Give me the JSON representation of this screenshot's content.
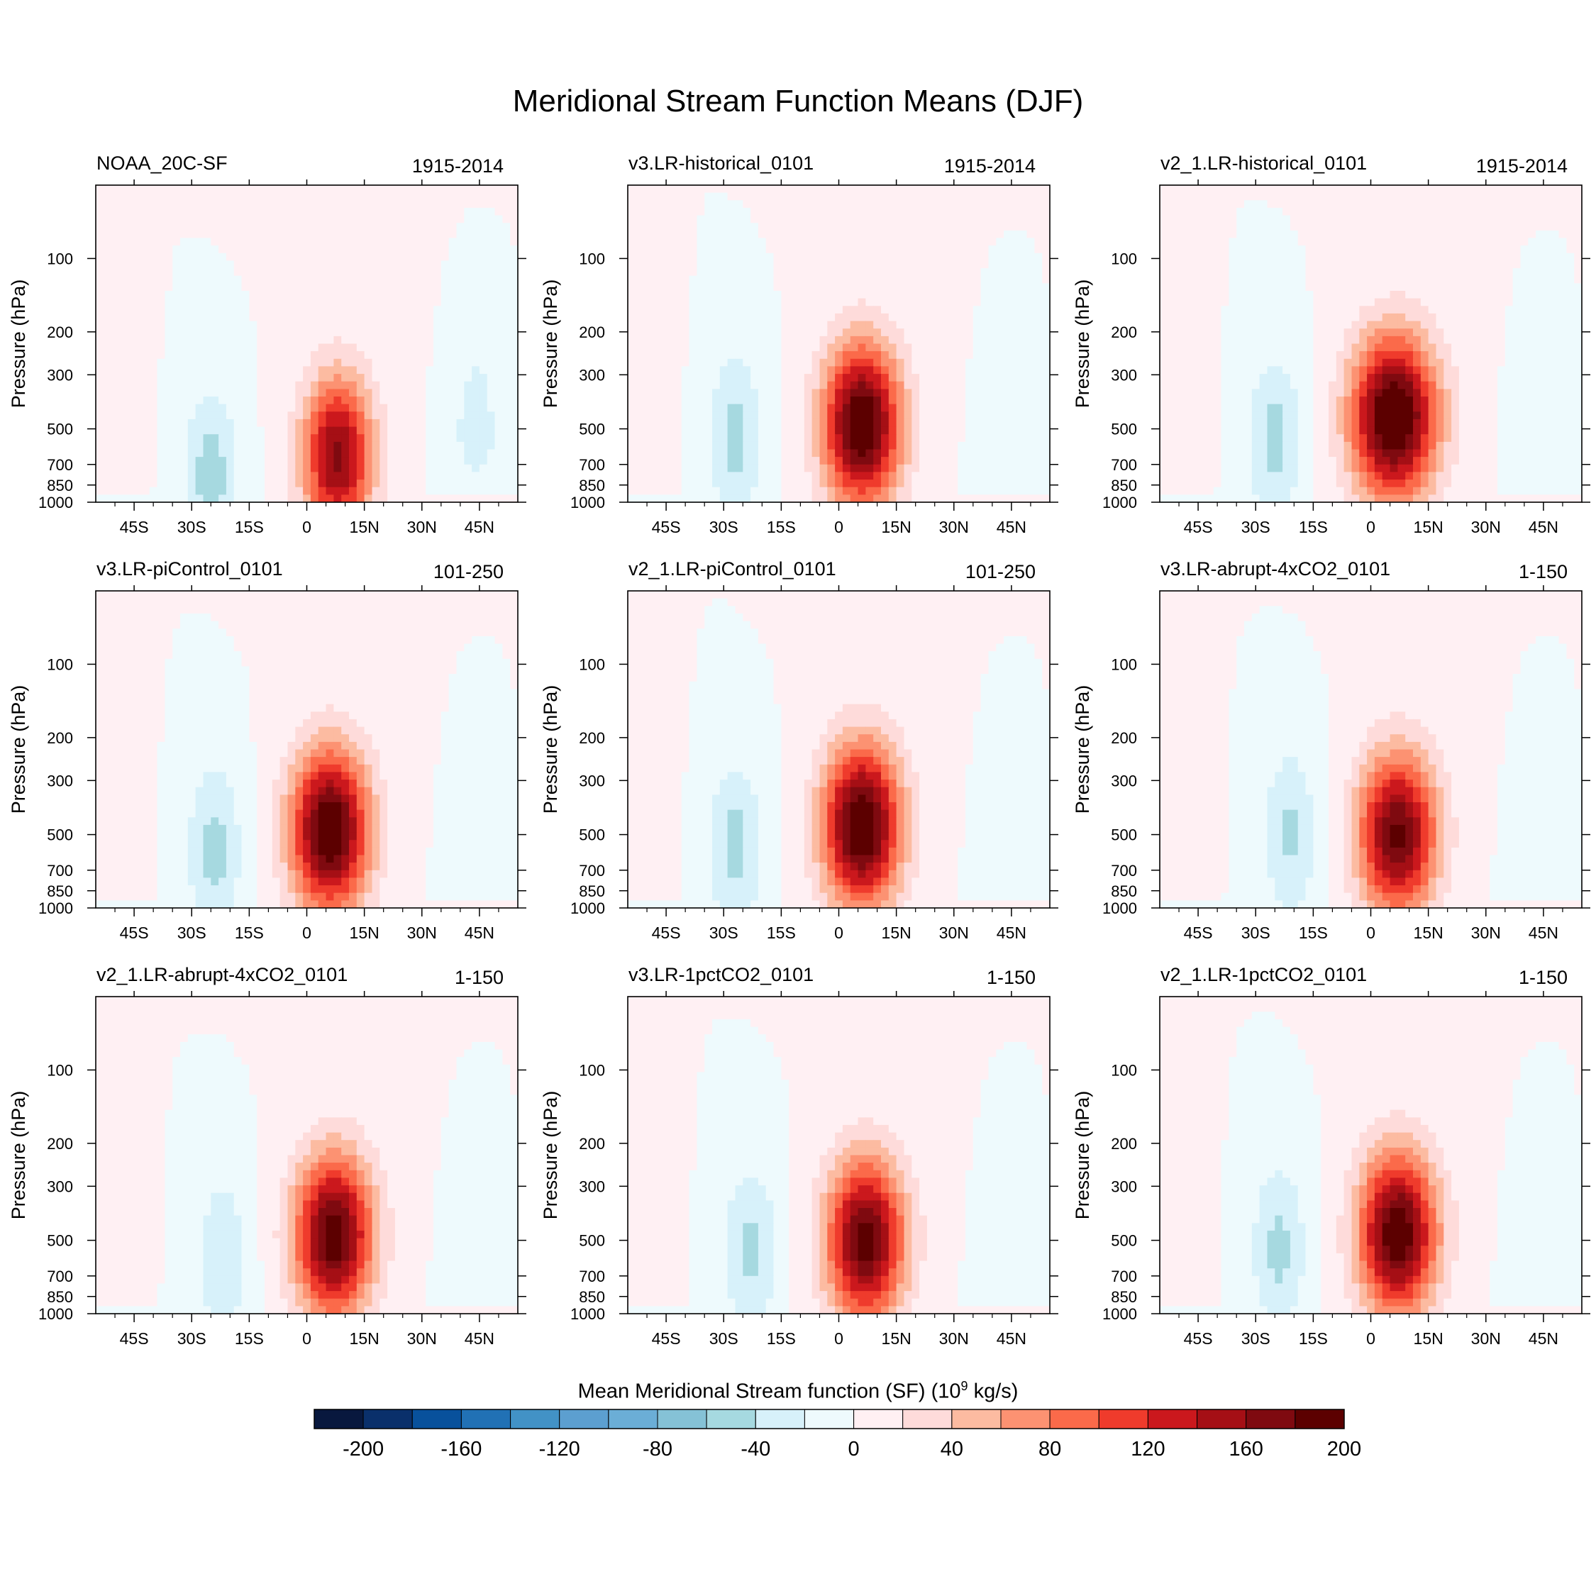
{
  "title": "Meridional Stream Function Means (DJF)",
  "colorbar": {
    "title_prefix": "Mean Meridional Stream function (SF) (10",
    "title_exp": "9",
    "title_suffix": " kg/s)",
    "levels": [
      -220,
      -200,
      -180,
      -160,
      -140,
      -120,
      -100,
      -80,
      -60,
      -40,
      -20,
      0,
      20,
      40,
      60,
      80,
      100,
      120,
      140,
      160,
      180,
      200,
      220
    ],
    "colors": [
      "#08183e",
      "#0a306b",
      "#08519c",
      "#2171b5",
      "#4292c6",
      "#5c9fd0",
      "#6baed6",
      "#85c2d6",
      "#a6d9e0",
      "#d7f1fa",
      "#eefafd",
      "#fff0f3",
      "#fedbda",
      "#fcbba1",
      "#fc9272",
      "#fb6a4a",
      "#ef3b2c",
      "#cb181d",
      "#a50f15",
      "#7f0a10",
      "#5c0000"
    ],
    "tick_values": [
      -200,
      -160,
      -120,
      -80,
      -40,
      0,
      40,
      80,
      120,
      160,
      200
    ],
    "tick_labels": [
      "-200",
      "-160",
      "-120",
      "-80",
      "-40",
      "0",
      "40",
      "80",
      "120",
      "160",
      "200"
    ]
  },
  "chart_data": [
    {
      "type": "contour",
      "title": "NOAA_20C-SF",
      "period": "1915-2014",
      "ylabel": "Pressure (hPa)",
      "xlabel": "",
      "xlim": [
        -55,
        55
      ],
      "ylim": [
        1000,
        50
      ],
      "x_ticks": [
        -45,
        -30,
        -15,
        0,
        15,
        30,
        45
      ],
      "x_tick_labels": [
        "45S",
        "30S",
        "15S",
        "0",
        "15N",
        "30N",
        "45N"
      ],
      "y_ticks": [
        100,
        200,
        300,
        500,
        700,
        850,
        1000
      ],
      "y_tick_labels": [
        "100",
        "200",
        "300",
        "500",
        "700",
        "850",
        "1000"
      ],
      "features": {
        "south_cell": {
          "lat": -25,
          "min": -50,
          "center_p": 780
        },
        "main_cell": {
          "lat": 8,
          "max": 165,
          "center_p": 650,
          "width": 9
        },
        "edge_south": 18,
        "edge_north": -28
      }
    },
    {
      "type": "contour",
      "title": "v3.LR-historical_0101",
      "period": "1915-2014",
      "ylabel": "Pressure (hPa)",
      "xlabel": "",
      "xlim": [
        -55,
        55
      ],
      "ylim": [
        1000,
        50
      ],
      "x_ticks": [
        -45,
        -30,
        -15,
        0,
        15,
        30,
        45
      ],
      "x_tick_labels": [
        "45S",
        "30S",
        "15S",
        "0",
        "15N",
        "30N",
        "45N"
      ],
      "y_ticks": [
        100,
        200,
        300,
        500,
        700,
        850,
        1000
      ],
      "y_tick_labels": [
        "100",
        "200",
        "300",
        "500",
        "700",
        "850",
        "1000"
      ],
      "features": {
        "south_cell": {
          "lat": -27,
          "min": -48,
          "center_p": 550
        },
        "main_cell": {
          "lat": 6,
          "max": 205,
          "center_p": 480,
          "width": 10
        },
        "edge_south": 15,
        "edge_north": -15
      }
    },
    {
      "type": "contour",
      "title": "v2_1.LR-historical_0101",
      "period": "1915-2014",
      "ylabel": "Pressure (hPa)",
      "xlabel": "",
      "xlim": [
        -55,
        55
      ],
      "ylim": [
        1000,
        50
      ],
      "x_ticks": [
        -45,
        -30,
        -15,
        0,
        15,
        30,
        45
      ],
      "x_tick_labels": [
        "45S",
        "30S",
        "15S",
        "0",
        "15N",
        "30N",
        "45N"
      ],
      "y_ticks": [
        100,
        200,
        300,
        500,
        700,
        850,
        1000
      ],
      "y_tick_labels": [
        "100",
        "200",
        "300",
        "500",
        "700",
        "850",
        "1000"
      ],
      "features": {
        "south_cell": {
          "lat": -25,
          "min": -48,
          "center_p": 560
        },
        "main_cell": {
          "lat": 6,
          "max": 215,
          "center_p": 450,
          "width": 11
        },
        "edge_south": 15,
        "edge_north": -15
      }
    },
    {
      "type": "contour",
      "title": "v3.LR-piControl_0101",
      "period": "101-250",
      "ylabel": "Pressure (hPa)",
      "xlabel": "",
      "xlim": [
        -55,
        55
      ],
      "ylim": [
        1000,
        50
      ],
      "x_ticks": [
        -45,
        -30,
        -15,
        0,
        15,
        30,
        45
      ],
      "x_tick_labels": [
        "45S",
        "30S",
        "15S",
        "0",
        "15N",
        "30N",
        "45N"
      ],
      "y_ticks": [
        100,
        200,
        300,
        500,
        700,
        850,
        1000
      ],
      "y_tick_labels": [
        "100",
        "200",
        "300",
        "500",
        "700",
        "850",
        "1000"
      ],
      "features": {
        "south_cell": {
          "lat": -24,
          "min": -48,
          "center_p": 580
        },
        "main_cell": {
          "lat": 6,
          "max": 205,
          "center_p": 480,
          "width": 10
        },
        "edge_south": 15,
        "edge_north": -15
      }
    },
    {
      "type": "contour",
      "title": "v2_1.LR-piControl_0101",
      "period": "101-250",
      "ylabel": "Pressure (hPa)",
      "xlabel": "",
      "xlim": [
        -55,
        55
      ],
      "ylim": [
        1000,
        50
      ],
      "x_ticks": [
        -45,
        -30,
        -15,
        0,
        15,
        30,
        45
      ],
      "x_tick_labels": [
        "45S",
        "30S",
        "15S",
        "0",
        "15N",
        "30N",
        "45N"
      ],
      "y_ticks": [
        100,
        200,
        300,
        500,
        700,
        850,
        1000
      ],
      "y_tick_labels": [
        "100",
        "200",
        "300",
        "500",
        "700",
        "850",
        "1000"
      ],
      "features": {
        "south_cell": {
          "lat": -27,
          "min": -48,
          "center_p": 560
        },
        "main_cell": {
          "lat": 6,
          "max": 208,
          "center_p": 460,
          "width": 10
        },
        "edge_south": 15,
        "edge_north": -15
      }
    },
    {
      "type": "contour",
      "title": "v3.LR-abrupt-4xCO2_0101",
      "period": "1-150",
      "ylabel": "Pressure (hPa)",
      "xlabel": "",
      "xlim": [
        -55,
        55
      ],
      "ylim": [
        1000,
        50
      ],
      "x_ticks": [
        -45,
        -30,
        -15,
        0,
        15,
        30,
        45
      ],
      "x_tick_labels": [
        "45S",
        "30S",
        "15S",
        "0",
        "15N",
        "30N",
        "45N"
      ],
      "y_ticks": [
        100,
        200,
        300,
        500,
        700,
        850,
        1000
      ],
      "y_tick_labels": [
        "100",
        "200",
        "300",
        "500",
        "700",
        "850",
        "1000"
      ],
      "features": {
        "south_cell": {
          "lat": -21,
          "min": -44,
          "center_p": 500
        },
        "main_cell": {
          "lat": 7,
          "max": 185,
          "center_p": 500,
          "width": 10
        },
        "edge_south": 15,
        "edge_north": -15
      }
    },
    {
      "type": "contour",
      "title": "v2_1.LR-abrupt-4xCO2_0101",
      "period": "1-150",
      "ylabel": "Pressure (hPa)",
      "xlabel": "",
      "xlim": [
        -55,
        55
      ],
      "ylim": [
        1000,
        50
      ],
      "x_ticks": [
        -45,
        -30,
        -15,
        0,
        15,
        30,
        45
      ],
      "x_tick_labels": [
        "45S",
        "30S",
        "15S",
        "0",
        "15N",
        "30N",
        "45N"
      ],
      "y_ticks": [
        100,
        200,
        300,
        500,
        700,
        850,
        1000
      ],
      "y_tick_labels": [
        "100",
        "200",
        "300",
        "500",
        "700",
        "850",
        "1000"
      ],
      "features": {
        "south_cell": {
          "lat": -22,
          "min": -38,
          "center_p": 600
        },
        "main_cell": {
          "lat": 7,
          "max": 195,
          "center_p": 480,
          "width": 10
        },
        "edge_south": 15,
        "edge_north": -15
      }
    },
    {
      "type": "contour",
      "title": "v3.LR-1pctCO2_0101",
      "period": "1-150",
      "ylabel": "Pressure (hPa)",
      "xlabel": "",
      "xlim": [
        -55,
        55
      ],
      "ylim": [
        1000,
        50
      ],
      "x_ticks": [
        -45,
        -30,
        -15,
        0,
        15,
        30,
        45
      ],
      "x_tick_labels": [
        "45S",
        "30S",
        "15S",
        "0",
        "15N",
        "30N",
        "45N"
      ],
      "y_ticks": [
        100,
        200,
        300,
        500,
        700,
        850,
        1000
      ],
      "y_tick_labels": [
        "100",
        "200",
        "300",
        "500",
        "700",
        "850",
        "1000"
      ],
      "features": {
        "south_cell": {
          "lat": -23,
          "min": -46,
          "center_p": 550
        },
        "main_cell": {
          "lat": 7,
          "max": 190,
          "center_p": 500,
          "width": 10
        },
        "edge_south": 15,
        "edge_north": -15
      }
    },
    {
      "type": "contour",
      "title": "v2_1.LR-1pctCO2_0101",
      "period": "1-150",
      "ylabel": "Pressure (hPa)",
      "xlabel": "",
      "xlim": [
        -55,
        55
      ],
      "ylim": [
        1000,
        50
      ],
      "x_ticks": [
        -45,
        -30,
        -15,
        0,
        15,
        30,
        45
      ],
      "x_tick_labels": [
        "45S",
        "30S",
        "15S",
        "0",
        "15N",
        "30N",
        "45N"
      ],
      "y_ticks": [
        100,
        200,
        300,
        500,
        700,
        850,
        1000
      ],
      "y_tick_labels": [
        "100",
        "200",
        "300",
        "500",
        "700",
        "850",
        "1000"
      ],
      "features": {
        "south_cell": {
          "lat": -24,
          "min": -46,
          "center_p": 540
        },
        "main_cell": {
          "lat": 7,
          "max": 200,
          "center_p": 470,
          "width": 10
        },
        "edge_south": 15,
        "edge_north": -15
      }
    }
  ]
}
